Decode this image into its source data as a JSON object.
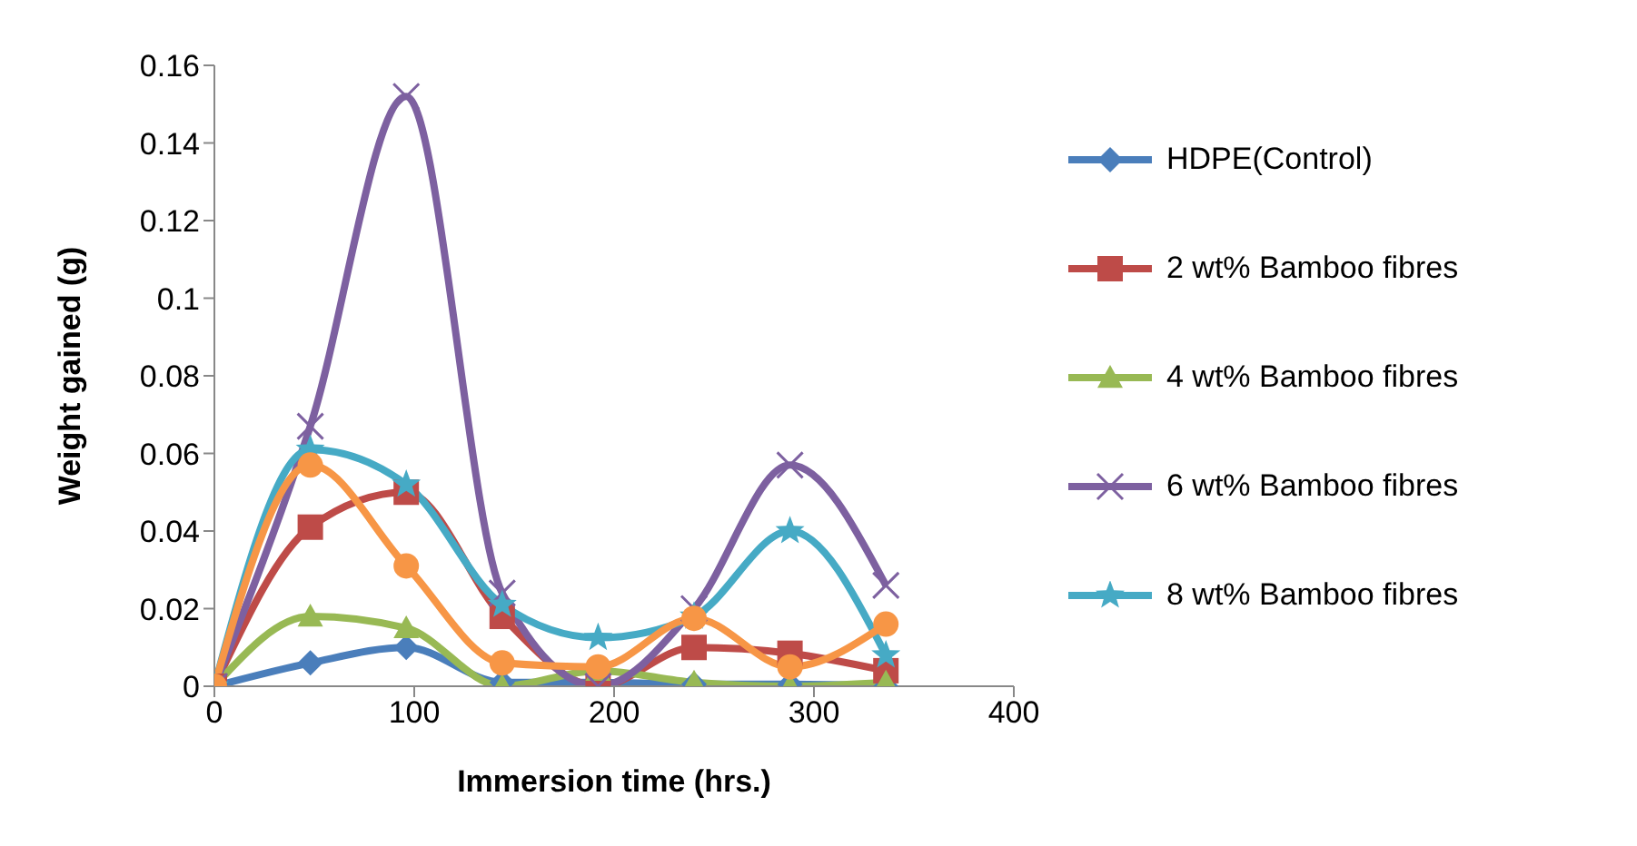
{
  "chart_data": {
    "type": "line",
    "xlabel": "Immersion time (hrs.)",
    "ylabel": "Weight gained (g)",
    "x": [
      0,
      48,
      96,
      144,
      192,
      240,
      288,
      336
    ],
    "xlim": [
      0,
      400
    ],
    "xticks": [
      0,
      100,
      200,
      300,
      400
    ],
    "ylim": [
      0,
      0.16
    ],
    "yticks": [
      0,
      0.02,
      0.04,
      0.06,
      0.08,
      0.1,
      0.12,
      0.14,
      0.16
    ],
    "legend": "right",
    "series": [
      {
        "name": "HDPE(Control)",
        "color": "#4a7ebb",
        "marker": "diamond",
        "values": [
          0,
          0.006,
          0.01,
          0.001,
          0.001,
          0.0005,
          0.0005,
          0
        ]
      },
      {
        "name": "2 wt% Bamboo fibres",
        "color": "#be4b48",
        "marker": "square",
        "values": [
          0,
          0.041,
          0.05,
          0.018,
          0,
          0.01,
          0.0085,
          0.004
        ]
      },
      {
        "name": "4 wt% Bamboo fibres",
        "color": "#98b954",
        "marker": "triangle",
        "values": [
          0,
          0.018,
          0.015,
          0,
          0.004,
          0.001,
          0,
          0.001
        ]
      },
      {
        "name": "6 wt% Bamboo fibres",
        "color": "#7d60a0",
        "marker": "cross",
        "values": [
          0,
          0.067,
          0.152,
          0.024,
          0,
          0.02,
          0.057,
          0.026
        ]
      },
      {
        "name": "8 wt% Bamboo fibres",
        "color": "#46aac5",
        "marker": "star",
        "values": [
          0,
          0.061,
          0.052,
          0.021,
          0.0125,
          0.018,
          0.04,
          0.008
        ]
      },
      {
        "color": "#f79646",
        "marker": "circle",
        "values": [
          0,
          0.057,
          0.031,
          0.006,
          0.005,
          0.0175,
          0.005,
          0.016
        ]
      }
    ]
  }
}
